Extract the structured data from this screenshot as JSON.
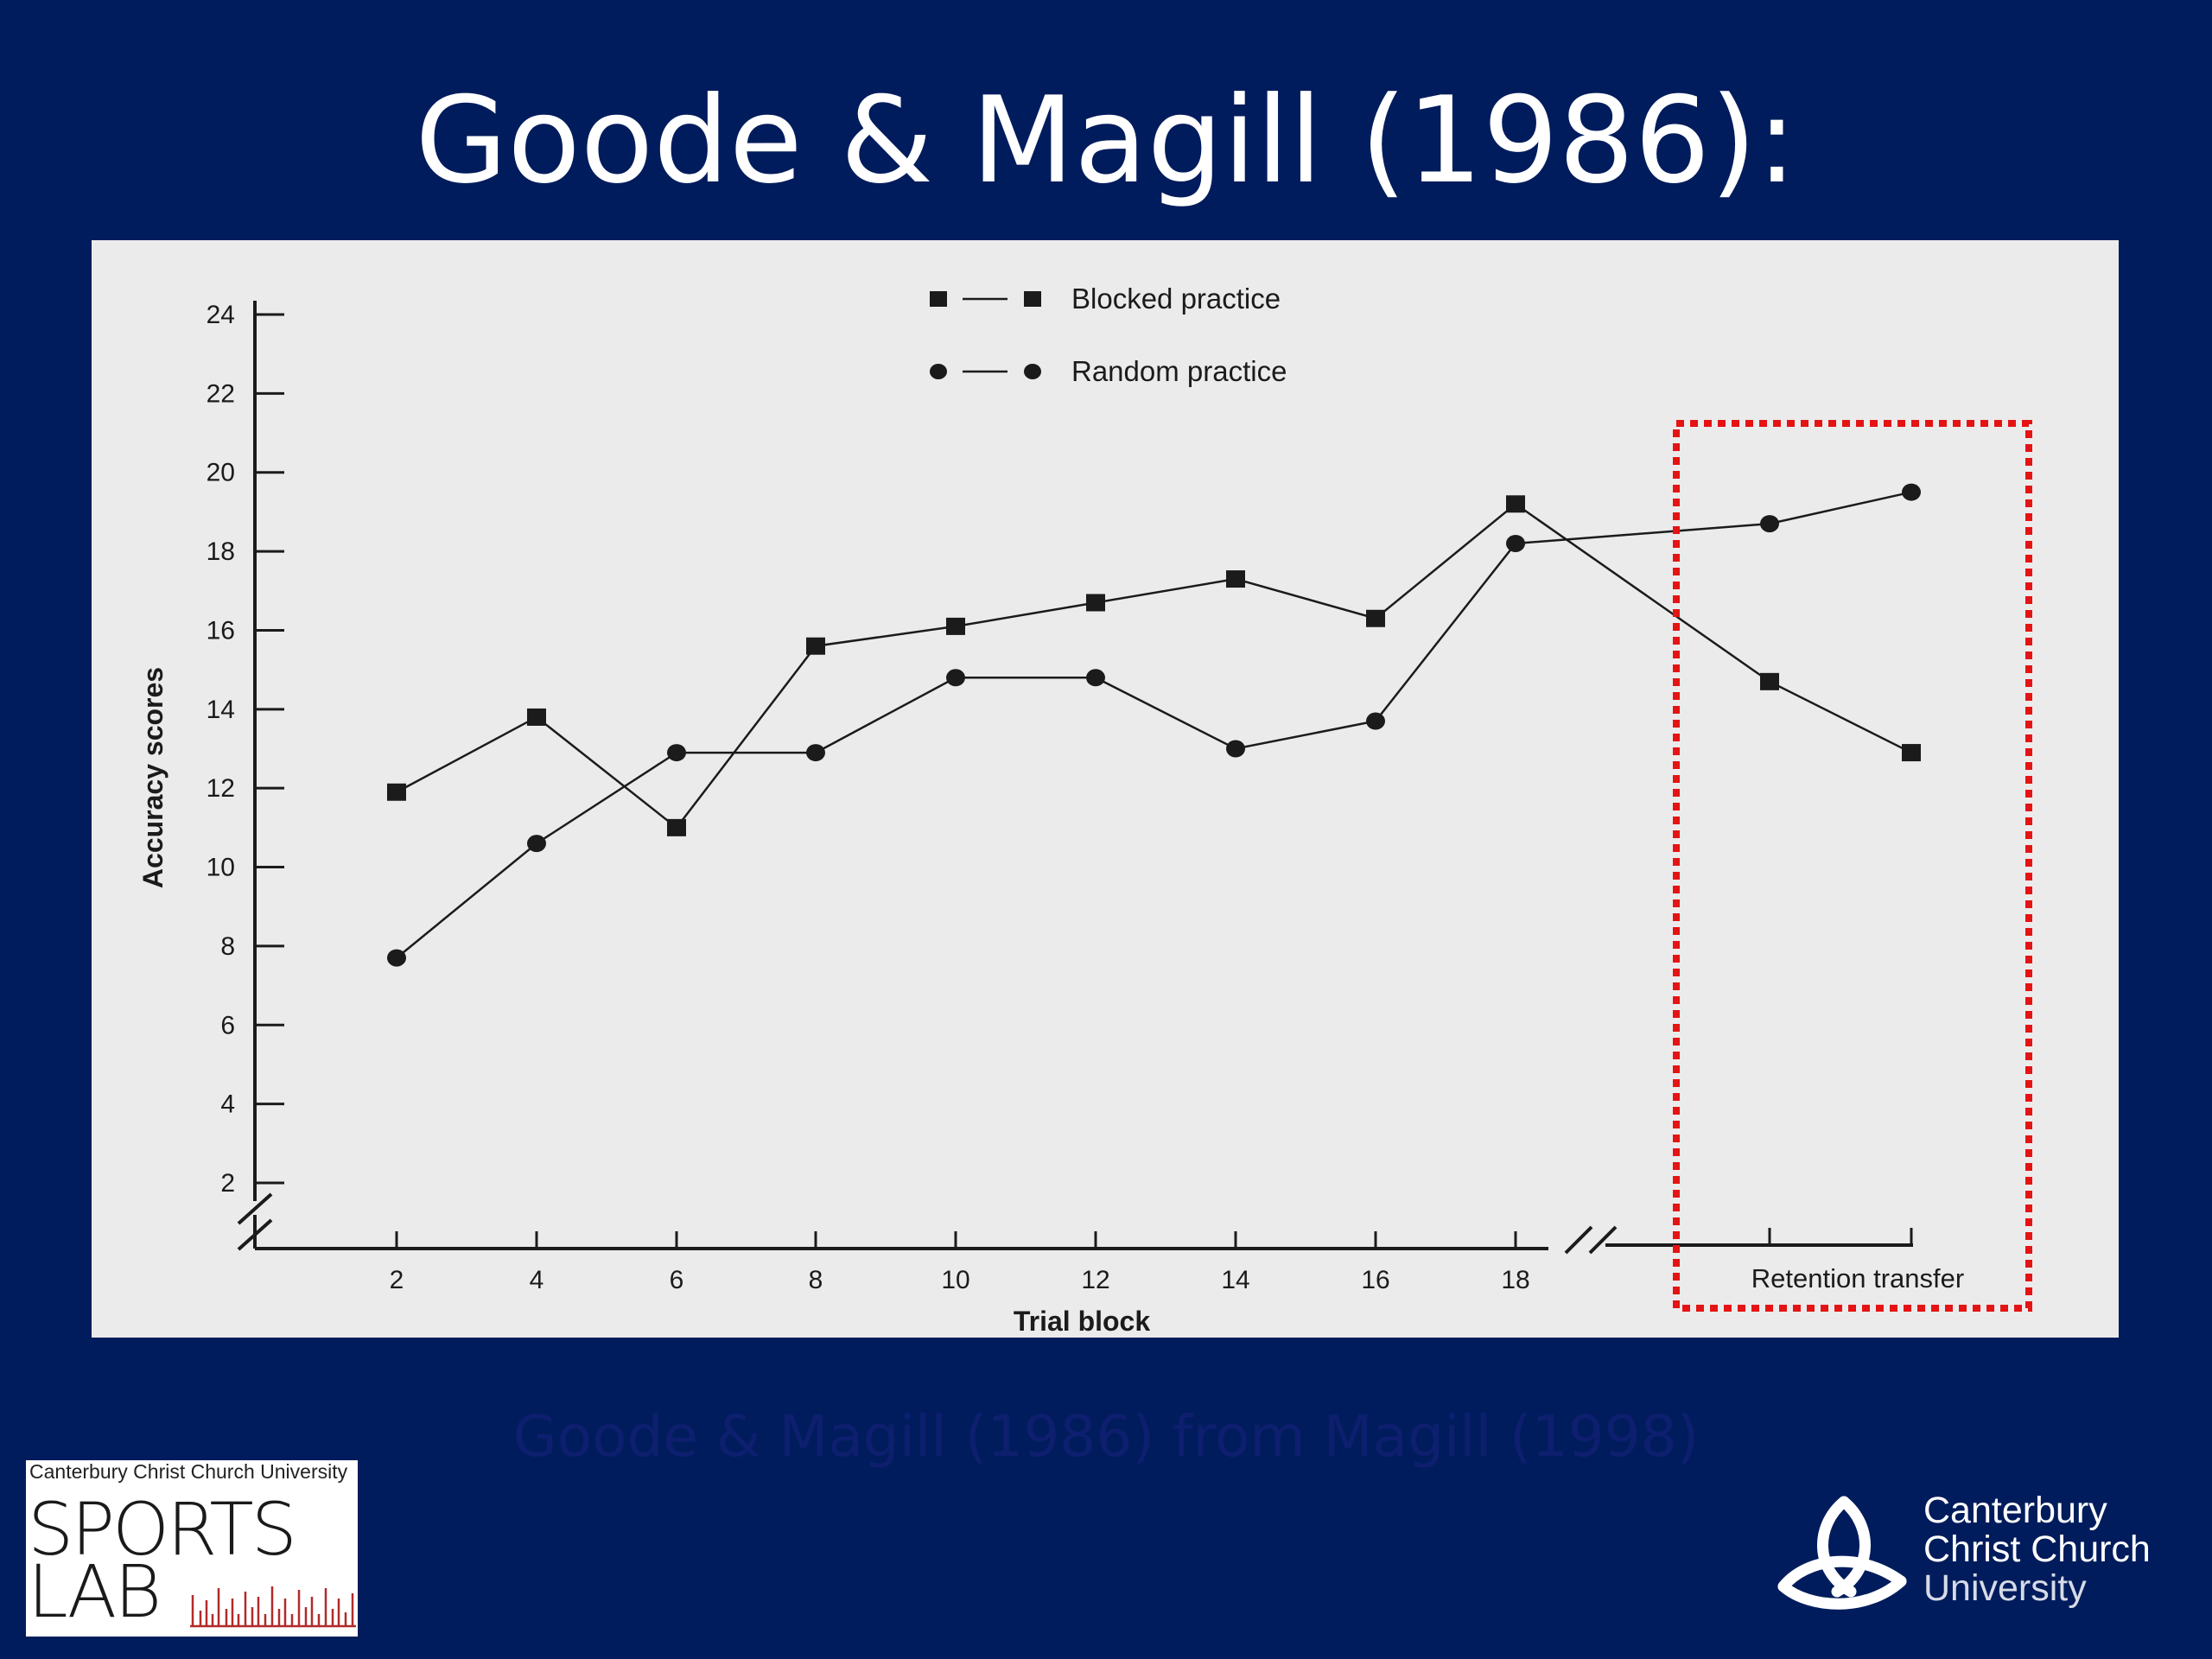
{
  "slide": {
    "title": "Goode & Magill (1986):",
    "caption": "Goode & Magill (1986) from Magill (1998)"
  },
  "colors": {
    "background": "#011c5c",
    "panel": "#ecebeb",
    "highlight_box": "#e41414",
    "caption_text": "#0d1f6e"
  },
  "chart_data": {
    "type": "line",
    "title": "",
    "xlabel": "Trial block",
    "ylabel": "Accuracy scores",
    "categories": [
      "2",
      "4",
      "6",
      "8",
      "10",
      "12",
      "14",
      "16",
      "18",
      "Retention",
      "transfer"
    ],
    "x_tick_labels": [
      "2",
      "4",
      "6",
      "8",
      "10",
      "12",
      "14",
      "16",
      "18"
    ],
    "post_break_label": "Retention transfer",
    "y_ticks": [
      2,
      4,
      6,
      8,
      10,
      12,
      14,
      16,
      18,
      20,
      22,
      24
    ],
    "ylim": [
      0,
      24
    ],
    "axis_break": true,
    "grid": false,
    "legend_position": "top-center",
    "highlight": "Retention transfer",
    "series": [
      {
        "name": "Blocked practice",
        "marker": "square",
        "values": [
          11.9,
          13.8,
          11.0,
          15.6,
          16.1,
          16.7,
          17.3,
          16.3,
          19.2,
          14.7,
          12.9
        ]
      },
      {
        "name": "Random practice",
        "marker": "circle",
        "values": [
          7.7,
          10.6,
          12.9,
          12.9,
          14.8,
          14.8,
          13.0,
          13.7,
          18.2,
          18.7,
          19.5
        ]
      }
    ]
  },
  "logos": {
    "sports_lab": {
      "top": "Canterbury Christ Church University",
      "line1": "SPORTS",
      "line2": "LAB"
    },
    "cccu": {
      "line1": "Canterbury",
      "line2": "Christ Church",
      "line3": "University"
    }
  }
}
